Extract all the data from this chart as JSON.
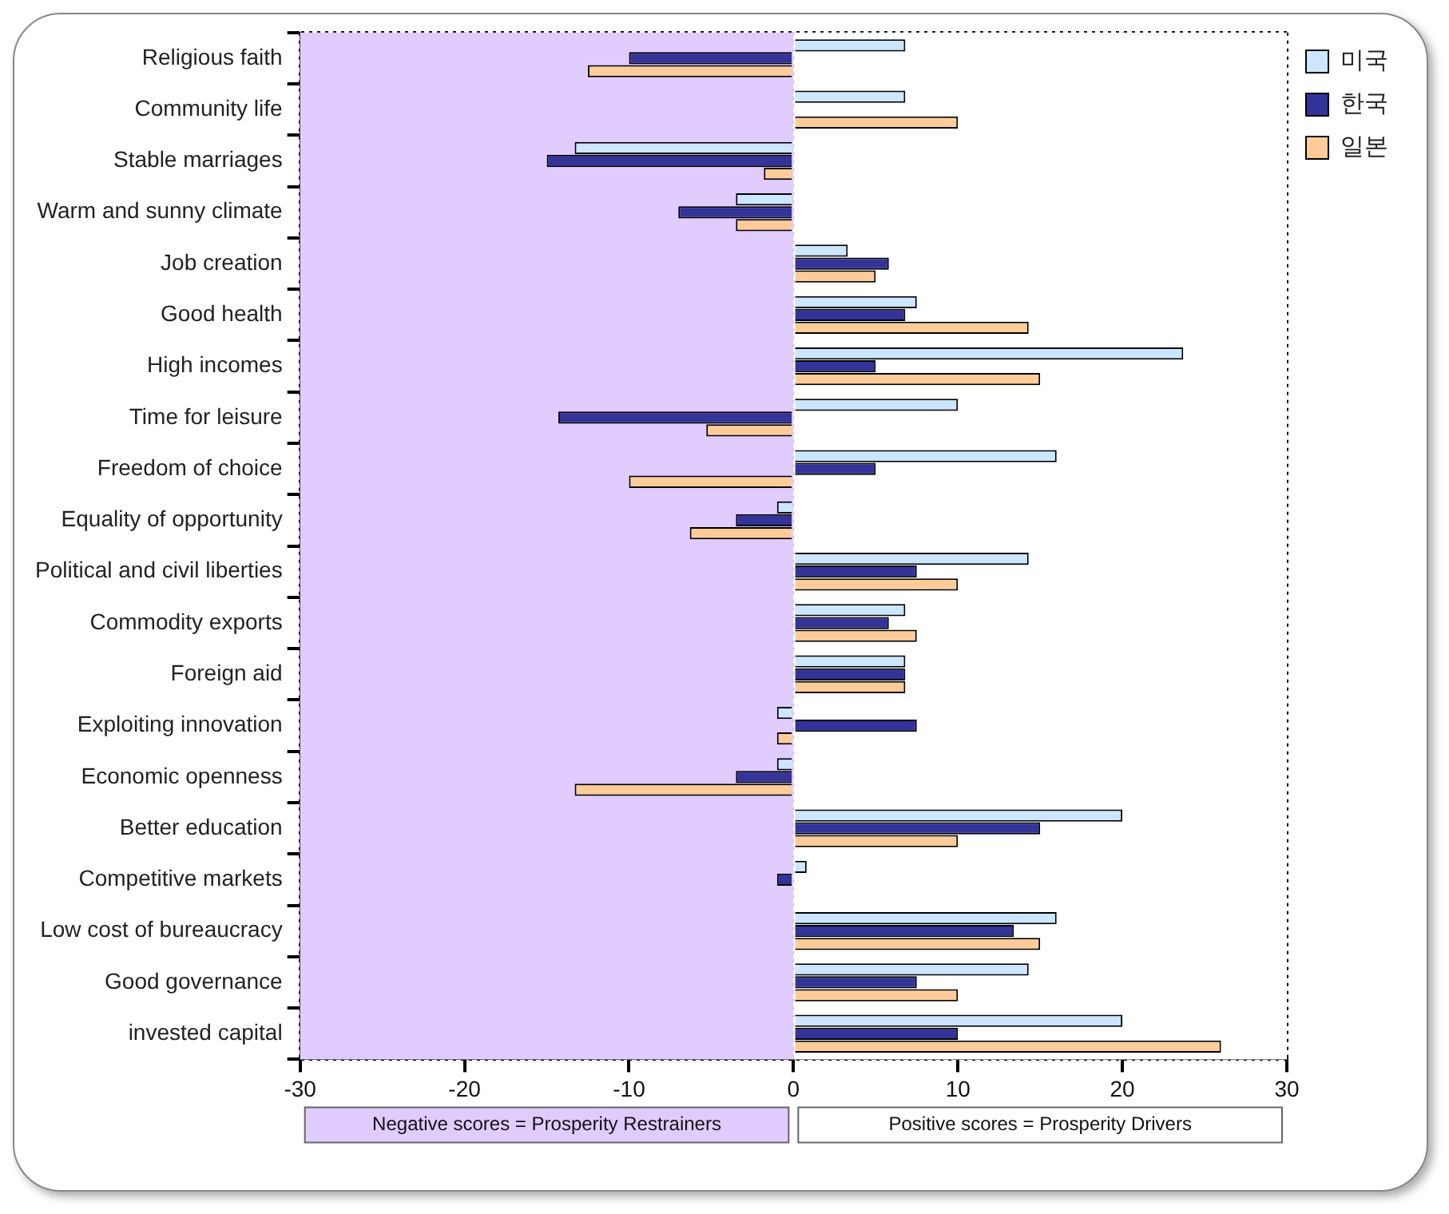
{
  "chart_data": {
    "type": "bar",
    "orientation": "horizontal",
    "categories": [
      "Religious faith",
      "Community life",
      "Stable marriages",
      "Warm and sunny climate",
      "Job creation",
      "Good health",
      "High incomes",
      "Time for leisure",
      "Freedom of choice",
      "Equality of opportunity",
      "Political and civil liberties",
      "Commodity exports",
      "Foreign aid",
      "Exploiting innovation",
      "Economic openness",
      "Better education",
      "Competitive markets",
      "Low cost of bureaucracy",
      "Good governance",
      "invested capital"
    ],
    "series": [
      {
        "name": "미국",
        "color": "#cce6ff",
        "values": [
          6.8,
          6.8,
          -13.3,
          -3.5,
          3.3,
          7.5,
          23.7,
          10,
          16,
          -1,
          14.3,
          6.8,
          6.8,
          -1,
          -1,
          20,
          0.8,
          16,
          14.3,
          20
        ]
      },
      {
        "name": "한국",
        "color": "#333399",
        "values": [
          -10,
          0,
          -15,
          -7,
          5.8,
          6.8,
          5,
          -14.3,
          5,
          -3.5,
          7.5,
          5.8,
          6.8,
          7.5,
          -3.5,
          15,
          -1,
          13.4,
          7.5,
          10
        ]
      },
      {
        "name": "일본",
        "color": "#ffcc99",
        "values": [
          -12.5,
          10,
          -1.8,
          -3.5,
          5,
          14.3,
          15,
          -5.3,
          -10,
          -6.3,
          10,
          7.5,
          6.8,
          -1,
          -13.3,
          10,
          0,
          15,
          10,
          26
        ]
      }
    ],
    "xlim": [
      -30,
      30
    ],
    "xticks": [
      -30,
      -20,
      -10,
      0,
      10,
      20,
      30
    ],
    "bands": [
      {
        "axis": "x",
        "from": -30,
        "to": 0,
        "label": "Negative scores = Prosperity Restrainers",
        "color": "#e0ccff"
      },
      {
        "axis": "x",
        "from": 0,
        "to": 30,
        "label": "Positive scores = Prosperity Drivers",
        "color": "#ffffff"
      }
    ],
    "grid": true,
    "legend": "top right"
  }
}
